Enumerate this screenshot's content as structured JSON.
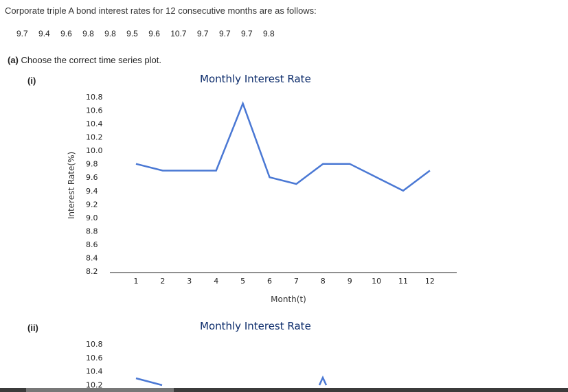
{
  "question": {
    "intro": "Corporate triple A bond interest rates for 12 consecutive months are as follows:",
    "values": [
      "9.7",
      "9.4",
      "9.6",
      "9.8",
      "9.8",
      "9.5",
      "9.6",
      "10.7",
      "9.7",
      "9.7",
      "9.7",
      "9.8"
    ],
    "part_a_prefix": "(a)",
    "part_a_text": "Choose the correct time series plot."
  },
  "options": [
    {
      "label": "(i)",
      "title": "Monthly Interest Rate"
    },
    {
      "label": "(ii)",
      "title": "Monthly Interest Rate"
    }
  ],
  "chart_data": [
    {
      "type": "line",
      "title": "Monthly Interest Rate",
      "xlabel": "Month(t)",
      "ylabel": "Interest Rate(%)",
      "x": [
        1,
        2,
        3,
        4,
        5,
        6,
        7,
        8,
        9,
        10,
        11,
        12
      ],
      "y_ticks": [
        "8.2",
        "8.4",
        "8.6",
        "8.8",
        "9.0",
        "9.2",
        "9.4",
        "9.6",
        "9.8",
        "10.0",
        "10.2",
        "10.4",
        "10.6",
        "10.8"
      ],
      "ylim": [
        8.2,
        10.8
      ],
      "series": [
        {
          "values": [
            9.8,
            9.7,
            9.7,
            9.7,
            10.7,
            9.6,
            9.5,
            9.8,
            9.8,
            9.6,
            9.4,
            9.7
          ]
        }
      ],
      "line_color": "#4a78d4"
    },
    {
      "type": "line",
      "title": "Monthly Interest Rate",
      "y_ticks": [
        "10.2",
        "10.4",
        "10.6",
        "10.8"
      ],
      "ylim": [
        8.2,
        10.8
      ],
      "line_color": "#4a78d4"
    }
  ]
}
